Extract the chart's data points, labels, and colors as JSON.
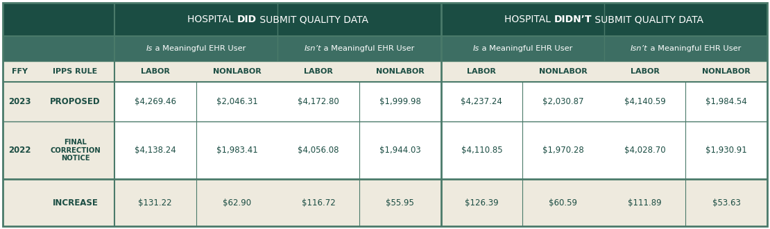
{
  "dark_green": "#1b4d43",
  "medium_green": "#3d6e63",
  "light_bg": "#eeeade",
  "white": "#ffffff",
  "border_color": "#4a7a6a",
  "text_dark": "#1b4d43",
  "row1_vals": [
    "$4,269.46",
    "$2,046.31",
    "$4,172.80",
    "$1,999.98",
    "$4,237.24",
    "$2,030.87",
    "$4,140.59",
    "$1,984.54"
  ],
  "row2_vals": [
    "$4,138.24",
    "$1,983.41",
    "$4,056.08",
    "$1,944.03",
    "$4,110.85",
    "$1,970.28",
    "$4,028.70",
    "$1,930.91"
  ],
  "row3_vals": [
    "$131.22",
    "$62.90",
    "$116.72",
    "$55.95",
    "$126.39",
    "$60.59",
    "$111.89",
    "$53.63"
  ],
  "col_labels": [
    "LABOR",
    "NONLABOR",
    "LABOR",
    "NONLABOR",
    "LABOR",
    "NONLABOR",
    "LABOR",
    "NONLABOR"
  ],
  "fs_header": 10.0,
  "fs_sub": 8.2,
  "fs_col": 8.0,
  "fs_data": 8.5,
  "fs_rule": 7.2
}
